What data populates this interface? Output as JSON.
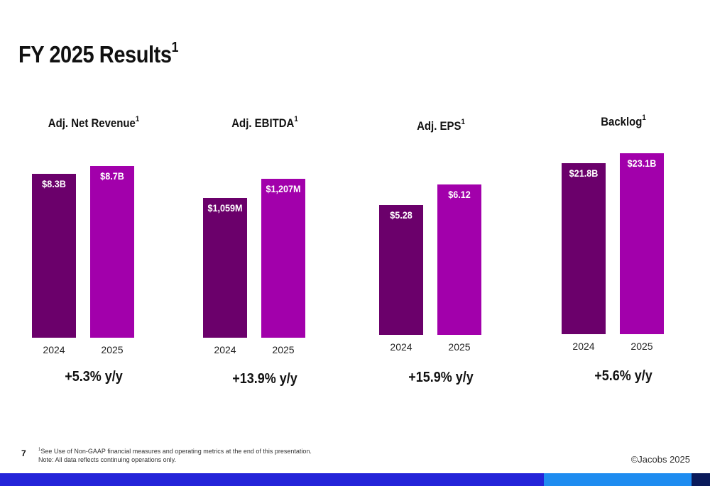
{
  "title": "FY 2025 Results",
  "title_sup": "1",
  "colors": {
    "bar_2024": "#6b006b",
    "bar_2025": "#a200ab",
    "footer_navy": "#2424d9",
    "footer_blue": "#1e8cf0",
    "footer_dark": "#0a1a5a"
  },
  "chart_data": [
    {
      "type": "bar",
      "title": "Adj. Net Revenue",
      "title_sup": "1",
      "categories": [
        "2024",
        "2025"
      ],
      "values": [
        8.3,
        8.7
      ],
      "value_labels": [
        "$8.3B",
        "$8.7B"
      ],
      "unit": "$B",
      "growth": "+5.3% y/y"
    },
    {
      "type": "bar",
      "title": "Adj. EBITDA",
      "title_sup": "1",
      "categories": [
        "2024",
        "2025"
      ],
      "values": [
        1059,
        1207
      ],
      "value_labels": [
        "$1,059M",
        "$1,207M"
      ],
      "unit": "$M",
      "growth": "+13.9% y/y"
    },
    {
      "type": "bar",
      "title": "Adj. EPS",
      "title_sup": "1",
      "categories": [
        "2024",
        "2025"
      ],
      "values": [
        5.28,
        6.12
      ],
      "value_labels": [
        "$5.28",
        "$6.12"
      ],
      "unit": "$",
      "growth": "+15.9% y/y"
    },
    {
      "type": "bar",
      "title": "Backlog",
      "title_sup": "1",
      "categories": [
        "2024",
        "2025"
      ],
      "values": [
        21.8,
        23.1
      ],
      "value_labels": [
        "$21.8B",
        "$23.1B"
      ],
      "unit": "$B",
      "growth": "+5.6% y/y"
    }
  ],
  "footer": {
    "page_number": "7",
    "note_sup": "1",
    "note_line1": "See Use of Non-GAAP financial measures and operating metrics at the end of this presentation.",
    "note_line2": "Note: All data reflects continuing operations only.",
    "copyright": "©Jacobs 2025"
  }
}
